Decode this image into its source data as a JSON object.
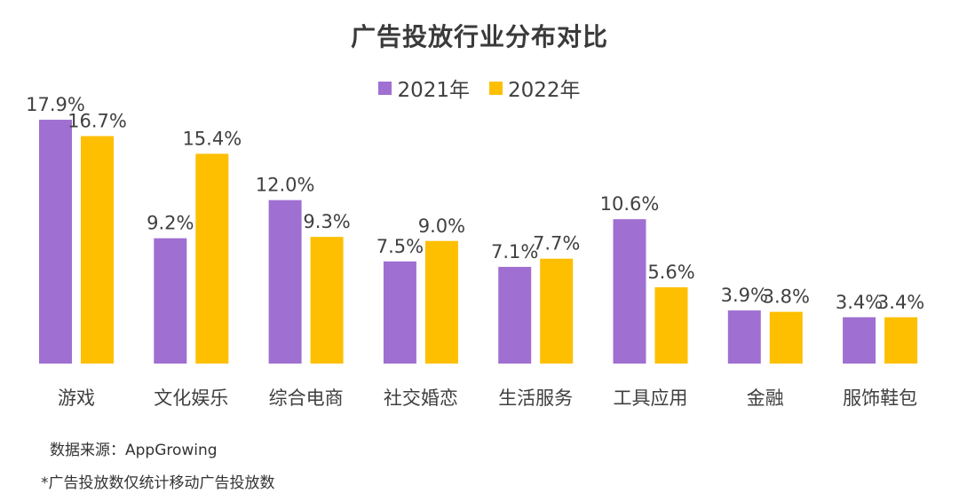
{
  "chart_data": {
    "type": "bar",
    "title": "广告投放行业分布对比",
    "xlabel": "",
    "ylabel": "",
    "ylim": [
      0,
      20
    ],
    "grid": false,
    "legend_position": "top-center",
    "categories": [
      "游戏",
      "文化娱乐",
      "综合电商",
      "社交婚恋",
      "生活服务",
      "工具应用",
      "金融",
      "服饰鞋包"
    ],
    "series": [
      {
        "name": "2021年",
        "color": "#9f6fd1",
        "values": [
          17.9,
          9.2,
          12.0,
          7.5,
          7.1,
          10.6,
          3.9,
          3.4
        ],
        "labels": [
          "17.9%",
          "9.2%",
          "12.0%",
          "7.5%",
          "7.1%",
          "10.6%",
          "3.9%",
          "3.4%"
        ]
      },
      {
        "name": "2022年",
        "color": "#fdbf00",
        "values": [
          16.7,
          15.4,
          9.3,
          9.0,
          7.7,
          5.6,
          3.8,
          3.4
        ],
        "labels": [
          "16.7%",
          "15.4%",
          "9.3%",
          "9.0%",
          "7.7%",
          "5.6%",
          "3.8%",
          "3.4%"
        ]
      }
    ],
    "unit": "%"
  },
  "notes": {
    "source": "数据来源：AppGrowing",
    "footnote": "*广告投放数仅统计移动广告投放数"
  }
}
